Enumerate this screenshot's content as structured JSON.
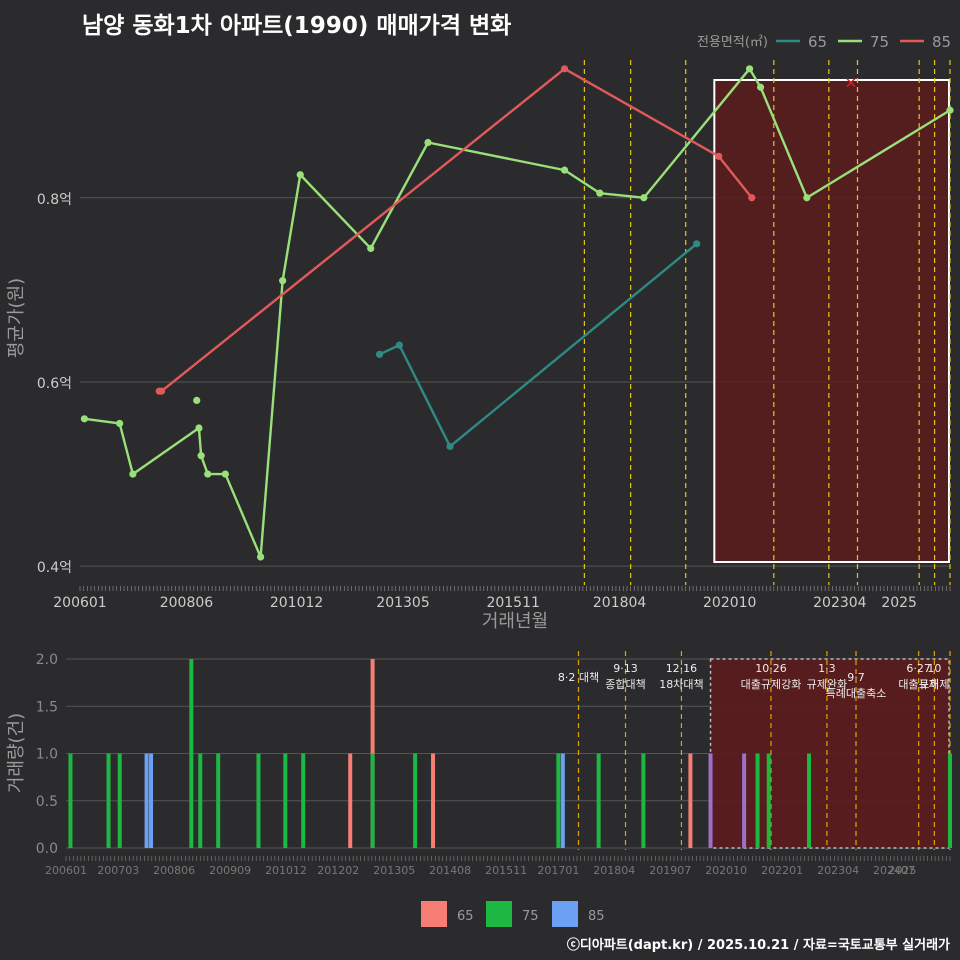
{
  "title": "남양 동화1차 아파트(1990) 매매가격 변화",
  "credit": "ⓒ디아파트(dapt.kr) / 2025.10.21 / 자료=국토교통부 실거래가",
  "colors": {
    "background": "#2b2b2d",
    "grid": "#555555",
    "tick_text": "#cccccc",
    "tick_text_dim": "#8a8a8a",
    "policy_line": "#e6c619",
    "policy_line_bottom": "#e0a500",
    "highlight_fill": "#5c1b1c",
    "highlight_border": "#ffffff",
    "line_65": "#2f8a85",
    "line_75": "#99e07a",
    "line_85": "#e05a5a",
    "bar_65": "#f77e74",
    "bar_75": "#1cb842",
    "bar_85": "#6ba0f5",
    "bar_other": "#9a73c9"
  },
  "chart_data": [
    {
      "type": "line",
      "title": "남양 동화1차 아파트(1990) 매매가격 변화",
      "xlabel": "거래년월",
      "ylabel": "평균가(원)",
      "legend_title": "전용면적(㎡)",
      "legend_position": "top-right",
      "x_ticks": [
        "200601",
        "200806",
        "201012",
        "201305",
        "201511",
        "201804",
        "202010",
        "202304",
        "2025"
      ],
      "y_ticks": [
        0.4,
        0.6,
        0.8
      ],
      "y_tick_labels": [
        "0.4억",
        "0.6억",
        "0.8억"
      ],
      "xlim": [
        2006.0,
        2025.75
      ],
      "ylim": [
        0.385,
        0.955
      ],
      "series": [
        {
          "name": "65",
          "x": [
            2012.8,
            2013.25,
            2014.4,
            2020.0
          ],
          "values": [
            0.63,
            0.64,
            0.53,
            0.75
          ]
        },
        {
          "name": "75",
          "x": [
            2006.1,
            2006.9,
            2007.2,
            2008.7,
            2008.75,
            2008.9,
            2009.3,
            2010.1,
            2010.6,
            2011.0,
            2012.6,
            2013.9,
            2017.0,
            2017.8,
            2018.8,
            2021.2,
            2021.45,
            2022.5,
            2025.75
          ],
          "values": [
            0.56,
            0.555,
            0.5,
            0.55,
            0.52,
            0.5,
            0.5,
            0.41,
            0.71,
            0.825,
            0.745,
            0.86,
            0.83,
            0.805,
            0.8,
            0.94,
            0.92,
            0.8,
            0.895
          ]
        },
        {
          "name": "85",
          "x": [
            2007.85,
            2017.0,
            2020.5,
            2021.25
          ],
          "values": [
            0.59,
            0.94,
            0.845,
            0.8
          ]
        }
      ],
      "isolated_points": [
        {
          "series": "75",
          "x": 2008.65,
          "value": 0.58
        },
        {
          "series": "85",
          "x": 2007.8,
          "value": 0.59
        }
      ],
      "marker_x": {
        "x": 2023.5,
        "value": 0.925
      },
      "highlight_range": [
        2020.4,
        2025.75
      ],
      "policy_lines": [
        2017.45,
        2018.5,
        2019.75,
        2021.75,
        2023.0,
        2023.65,
        2025.05,
        2025.4,
        2025.75
      ]
    },
    {
      "type": "bar",
      "ylabel": "거래량(건)",
      "x_ticks": [
        "200601",
        "200703",
        "200806",
        "200909",
        "201012",
        "201202",
        "201305",
        "201408",
        "201511",
        "201701",
        "201804",
        "201907",
        "202010",
        "202201",
        "202304",
        "202407",
        "2025"
      ],
      "y_ticks": [
        0.0,
        0.5,
        1.0,
        1.5,
        2.0
      ],
      "y_tick_labels": [
        "0.0",
        "0.5",
        "1.0",
        "1.5",
        "2.0"
      ],
      "xlim": [
        2006.0,
        2025.75
      ],
      "ylim": [
        0,
        2.0
      ],
      "legend": [
        "65",
        "75",
        "85"
      ],
      "legend_position": "bottom",
      "bars": [
        {
          "x": 2006.1,
          "value": 1,
          "series": "75"
        },
        {
          "x": 2006.95,
          "value": 1,
          "series": "75"
        },
        {
          "x": 2007.2,
          "value": 1,
          "series": "75"
        },
        {
          "x": 2007.8,
          "value": 1,
          "series": "85"
        },
        {
          "x": 2007.9,
          "value": 1,
          "series": "85"
        },
        {
          "x": 2008.8,
          "value": 2,
          "series": "75"
        },
        {
          "x": 2009.0,
          "value": 1,
          "series": "75"
        },
        {
          "x": 2009.4,
          "value": 1,
          "series": "75"
        },
        {
          "x": 2010.3,
          "value": 1,
          "series": "75"
        },
        {
          "x": 2010.9,
          "value": 1,
          "series": "75"
        },
        {
          "x": 2011.3,
          "value": 1,
          "series": "75"
        },
        {
          "x": 2012.35,
          "value": 1,
          "series": "65"
        },
        {
          "x": 2012.85,
          "value": 2,
          "series": "65"
        },
        {
          "x": 2012.85,
          "value": 1,
          "series": "75"
        },
        {
          "x": 2013.8,
          "value": 1,
          "series": "75"
        },
        {
          "x": 2014.2,
          "value": 1,
          "series": "65"
        },
        {
          "x": 2017.0,
          "value": 1,
          "series": "75"
        },
        {
          "x": 2017.1,
          "value": 1,
          "series": "85"
        },
        {
          "x": 2017.9,
          "value": 1,
          "series": "75"
        },
        {
          "x": 2018.9,
          "value": 1,
          "series": "75"
        },
        {
          "x": 2019.95,
          "value": 1,
          "series": "65"
        },
        {
          "x": 2020.4,
          "value": 1,
          "series": "other"
        },
        {
          "x": 2021.15,
          "value": 1,
          "series": "other"
        },
        {
          "x": 2021.45,
          "value": 1,
          "series": "75"
        },
        {
          "x": 2021.7,
          "value": 1,
          "series": "75"
        },
        {
          "x": 2022.6,
          "value": 1,
          "series": "75"
        },
        {
          "x": 2025.75,
          "value": 1,
          "series": "75"
        }
      ],
      "highlight_range": [
        2020.4,
        2025.75
      ],
      "policy_lines": [
        2017.45,
        2018.5,
        2019.75,
        2021.75,
        2023.0,
        2023.65,
        2025.05,
        2025.4,
        2025.75
      ],
      "annotations": [
        {
          "x": 2017.45,
          "lines": [
            "8·2 대책"
          ],
          "row": 1
        },
        {
          "x": 2018.5,
          "lines": [
            "9·13",
            "종합대책"
          ],
          "row": 0
        },
        {
          "x": 2019.75,
          "lines": [
            "12·16",
            "18차대책"
          ],
          "row": 0
        },
        {
          "x": 2021.75,
          "lines": [
            "10·26",
            "대출규제강화"
          ],
          "row": 0
        },
        {
          "x": 2023.0,
          "lines": [
            "1·3",
            "규제완화"
          ],
          "row": 0
        },
        {
          "x": 2023.65,
          "lines": [
            "9·7",
            "특례대출축소"
          ],
          "row": 1
        },
        {
          "x": 2025.05,
          "lines": [
            "6·27",
            "대출규제"
          ],
          "row": 0
        },
        {
          "x": 2025.4,
          "lines": [
            "10",
            "토허제"
          ],
          "row": 0
        }
      ]
    }
  ]
}
